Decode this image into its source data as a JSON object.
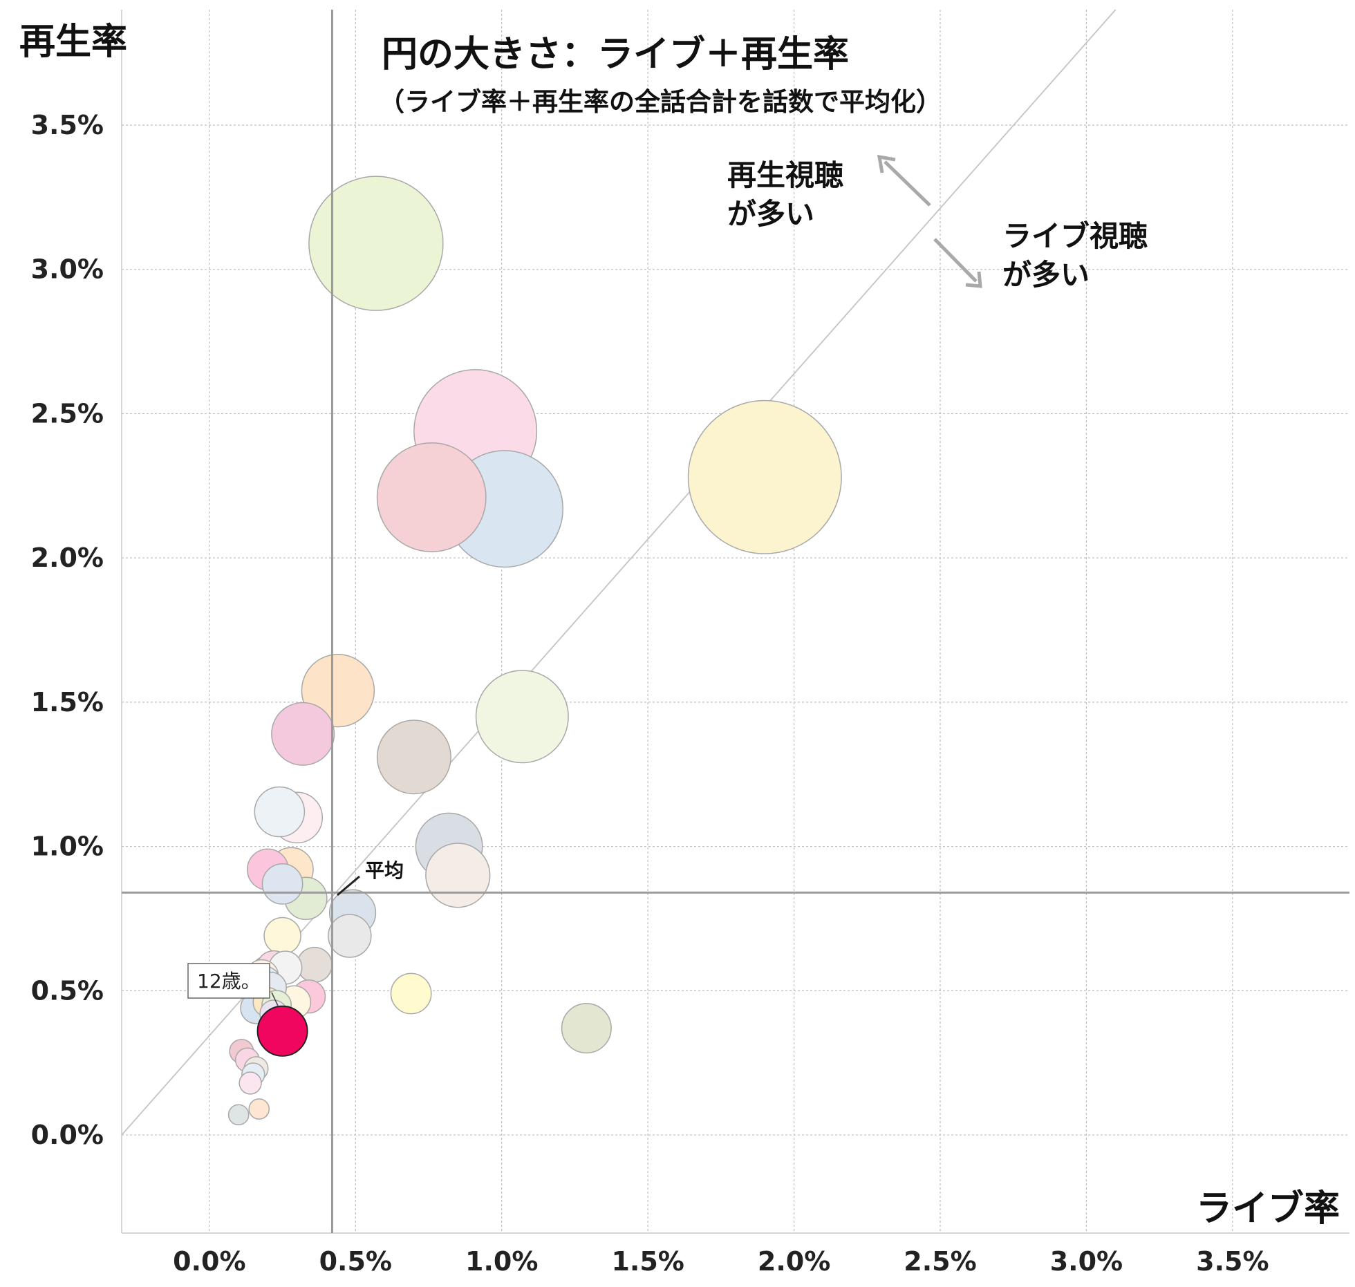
{
  "chart_data": {
    "type": "bubble",
    "title": "円の大きさ：ライブ＋再生率",
    "subtitle": "（ライブ率＋再生率の全話合計を話数で平均化）",
    "xlabel": "ライブ率",
    "ylabel": "再生率",
    "x_ticks": [
      "0.0%",
      "0.5%",
      "1.0%",
      "1.5%",
      "2.0%",
      "2.5%",
      "3.0%",
      "3.5%"
    ],
    "y_ticks": [
      "0.0%",
      "0.5%",
      "1.0%",
      "1.5%",
      "2.0%",
      "2.5%",
      "3.0%",
      "3.5%"
    ],
    "xlim": [
      -0.3,
      3.9
    ],
    "ylim": [
      -0.34,
      3.9
    ],
    "grid": true,
    "average": {
      "x": 0.42,
      "y": 0.84,
      "label": "平均"
    },
    "diagonal_reference": {
      "from": [
        -0.3,
        0.0
      ],
      "to": [
        3.1,
        3.9
      ]
    },
    "annotations": [
      {
        "lines": [
          "再生視聴",
          "が多い"
        ]
      },
      {
        "lines": [
          "ライブ視聴",
          "が多い"
        ]
      }
    ],
    "highlight": {
      "label": "12歳。",
      "x": 0.25,
      "y": 0.36,
      "color": "#f0065f"
    },
    "bubbles": [
      {
        "x": 0.57,
        "y": 3.09,
        "size": 3.66,
        "color": "#ebf5d6"
      },
      {
        "x": 0.91,
        "y": 2.44,
        "size": 3.35,
        "color": "#fcdbe8"
      },
      {
        "x": 1.9,
        "y": 2.28,
        "size": 4.18,
        "color": "#fcf3cf"
      },
      {
        "x": 1.01,
        "y": 2.17,
        "size": 3.18,
        "color": "#d9e5f1"
      },
      {
        "x": 0.76,
        "y": 2.21,
        "size": 2.97,
        "color": "#f5d0d4"
      },
      {
        "x": 0.44,
        "y": 1.54,
        "size": 1.98,
        "color": "#fde4c8"
      },
      {
        "x": 1.07,
        "y": 1.45,
        "size": 2.52,
        "color": "#f0f6e2"
      },
      {
        "x": 0.32,
        "y": 1.39,
        "size": 1.71,
        "color": "#f5c9dd"
      },
      {
        "x": 0.7,
        "y": 1.31,
        "size": 2.01,
        "color": "#e3d9d3"
      },
      {
        "x": 0.3,
        "y": 1.1,
        "size": 1.38,
        "color": "#fdeef2"
      },
      {
        "x": 0.24,
        "y": 1.12,
        "size": 1.36,
        "color": "#edf2f7"
      },
      {
        "x": 0.82,
        "y": 1.0,
        "size": 1.82,
        "color": "#d8dee3"
      },
      {
        "x": 0.85,
        "y": 0.9,
        "size": 1.75,
        "color": "#f4ece6"
      },
      {
        "x": 0.28,
        "y": 0.92,
        "size": 1.2,
        "color": "#fde6c9"
      },
      {
        "x": 0.25,
        "y": 0.87,
        "size": 1.1,
        "color": "#dde6f0"
      },
      {
        "x": 0.2,
        "y": 0.92,
        "size": 1.12,
        "color": "#fbc5dd"
      },
      {
        "x": 0.33,
        "y": 0.82,
        "size": 1.15,
        "color": "#e2ebd3"
      },
      {
        "x": 0.49,
        "y": 0.77,
        "size": 1.26,
        "color": "#dae3eb"
      },
      {
        "x": 0.48,
        "y": 0.69,
        "size": 1.17,
        "color": "#e9e9e9"
      },
      {
        "x": 0.25,
        "y": 0.69,
        "size": 1.0,
        "color": "#fef7da"
      },
      {
        "x": 0.36,
        "y": 0.59,
        "size": 0.95,
        "color": "#e5ddd8"
      },
      {
        "x": 0.26,
        "y": 0.58,
        "size": 0.9,
        "color": "#f3f3f3"
      },
      {
        "x": 0.22,
        "y": 0.58,
        "size": 0.92,
        "color": "#fbd6e3"
      },
      {
        "x": 0.2,
        "y": 0.56,
        "size": 0.95,
        "color": "#eaf2dc"
      },
      {
        "x": 0.18,
        "y": 0.55,
        "size": 0.9,
        "color": "#fff3e6"
      },
      {
        "x": 0.19,
        "y": 0.53,
        "size": 0.85,
        "color": "#d8f0f3"
      },
      {
        "x": 0.21,
        "y": 0.51,
        "size": 0.85,
        "color": "#e5eaf0"
      },
      {
        "x": 0.34,
        "y": 0.48,
        "size": 0.9,
        "color": "#fbc8dc"
      },
      {
        "x": 0.29,
        "y": 0.46,
        "size": 0.9,
        "color": "#fef6e0"
      },
      {
        "x": 0.2,
        "y": 0.46,
        "size": 0.8,
        "color": "#fde8c4"
      },
      {
        "x": 0.23,
        "y": 0.45,
        "size": 0.8,
        "color": "#e6f0d6"
      },
      {
        "x": 0.16,
        "y": 0.44,
        "size": 0.85,
        "color": "#d6e3f0"
      },
      {
        "x": 0.22,
        "y": 0.42,
        "size": 0.75,
        "color": "#ebe3f2"
      },
      {
        "x": 0.69,
        "y": 0.49,
        "size": 1.1,
        "color": "#fffbcf"
      },
      {
        "x": 1.29,
        "y": 0.37,
        "size": 1.35,
        "color": "#e3e6d1"
      },
      {
        "x": 0.24,
        "y": 0.33,
        "size": 0.7,
        "color": "#f2f5dd"
      },
      {
        "x": 0.11,
        "y": 0.29,
        "size": 0.65,
        "color": "#f3c9d1"
      },
      {
        "x": 0.13,
        "y": 0.26,
        "size": 0.65,
        "color": "#f8d6e3"
      },
      {
        "x": 0.16,
        "y": 0.23,
        "size": 0.65,
        "color": "#efe9e3"
      },
      {
        "x": 0.15,
        "y": 0.21,
        "size": 0.62,
        "color": "#e5eef5"
      },
      {
        "x": 0.14,
        "y": 0.18,
        "size": 0.6,
        "color": "#fbe5ef"
      },
      {
        "x": 0.17,
        "y": 0.09,
        "size": 0.55,
        "color": "#fde7d2"
      },
      {
        "x": 0.1,
        "y": 0.07,
        "size": 0.55,
        "color": "#dfe4e4"
      }
    ]
  }
}
